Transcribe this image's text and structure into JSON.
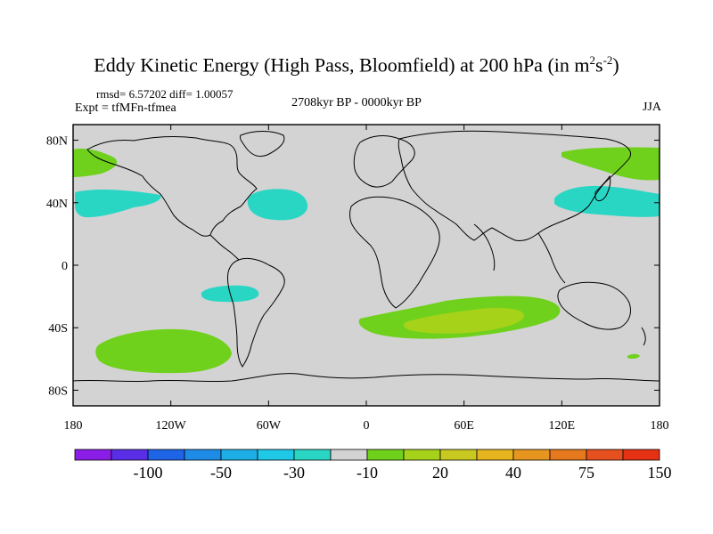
{
  "header": {
    "title_main": "Eddy Kinetic Energy (High Pass, Bloomfield) at 200 hPa (in m",
    "title_sup1": "2",
    "title_mid": "s",
    "title_sup2": "-2",
    "title_end": ")",
    "stats": "rmsd= 6.57202 diff= 1.00057",
    "experiment": "Expt = tfMFn-tfmea",
    "period": "2708kyr BP - 0000kyr BP",
    "season": "JJA"
  },
  "map": {
    "lat_labels": [
      "80N",
      "40N",
      "0",
      "40S",
      "80S"
    ],
    "lat_values": [
      80,
      40,
      0,
      -40,
      -80
    ],
    "lon_labels": [
      "180",
      "120W",
      "60W",
      "0",
      "60E",
      "120E",
      "180"
    ],
    "lon_values": [
      -180,
      -120,
      -60,
      0,
      60,
      120,
      180
    ],
    "lat_range": [
      -90,
      90
    ],
    "lon_range": [
      -180,
      180
    ],
    "regions": [
      {
        "name": "north-atlantic-negative",
        "value_class": "-10 to 0",
        "color": "#29d6c4"
      },
      {
        "name": "north-pacific-east-negative",
        "value_class": "-10 to 0",
        "color": "#29d6c4"
      },
      {
        "name": "north-pacific-west-negative",
        "value_class": "-10 to 0",
        "color": "#29d6c4"
      },
      {
        "name": "south-pacific-negative",
        "value_class": "-10 to 0",
        "color": "#29d6c4"
      },
      {
        "name": "arctic-west-positive",
        "value_class": "0 to 10",
        "color": "#6fd11c"
      },
      {
        "name": "arctic-east-positive",
        "value_class": "0 to 10",
        "color": "#6fd11c"
      },
      {
        "name": "south-pacific-positive",
        "value_class": "0 to 10",
        "color": "#6fd11c"
      },
      {
        "name": "southern-indian-positive",
        "value_class": "0 to 10",
        "color": "#6fd11c"
      },
      {
        "name": "southern-indian-core",
        "value_class": "10 to 20",
        "color": "#a6d21a"
      }
    ]
  },
  "colorbar": {
    "colors": [
      "#8a1ee6",
      "#5a2ee6",
      "#1e64e6",
      "#1e8ce6",
      "#1eaee6",
      "#1ec8e6",
      "#29d6c4",
      "#d3d3d3",
      "#6fd11c",
      "#a6d21a",
      "#c8c820",
      "#e6b41e",
      "#e6961e",
      "#e6781e",
      "#e6501e",
      "#e63214"
    ],
    "labels": [
      "-100",
      "-50",
      "-30",
      "-10",
      "20",
      "40",
      "75",
      "150"
    ],
    "label_positions": [
      2,
      4,
      6,
      8,
      10,
      12,
      14,
      16
    ]
  }
}
